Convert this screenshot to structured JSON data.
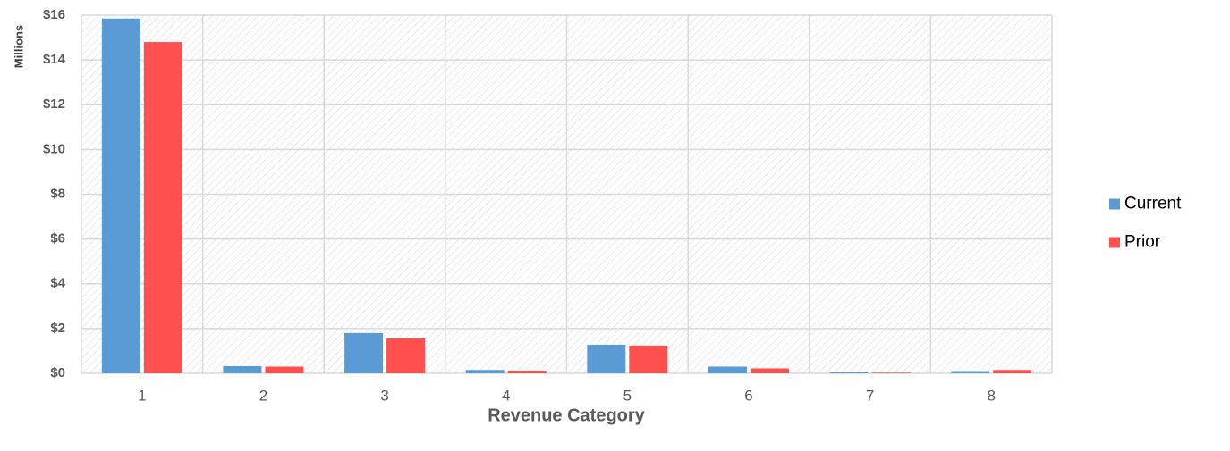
{
  "chart_data": {
    "type": "bar",
    "x_label": "Revenue Category",
    "y_label": "Millions",
    "categories": [
      "1",
      "2",
      "3",
      "4",
      "5",
      "6",
      "7",
      "8"
    ],
    "series": [
      {
        "name": "Current",
        "color": "#5b9bd5",
        "values": [
          15.85,
          0.32,
          1.8,
          0.15,
          1.28,
          0.3,
          0.05,
          0.1
        ]
      },
      {
        "name": "Prior",
        "color": "#ff5050",
        "values": [
          14.8,
          0.3,
          1.56,
          0.12,
          1.24,
          0.22,
          0.03,
          0.15
        ]
      }
    ],
    "ylim": [
      0,
      16
    ],
    "yticks": [
      {
        "value": 0,
        "label": "$0"
      },
      {
        "value": 2,
        "label": "$2"
      },
      {
        "value": 4,
        "label": "$4"
      },
      {
        "value": 6,
        "label": "$6"
      },
      {
        "value": 8,
        "label": "$8"
      },
      {
        "value": 10,
        "label": "$10"
      },
      {
        "value": 12,
        "label": "$12"
      },
      {
        "value": 14,
        "label": "$14"
      },
      {
        "value": 16,
        "label": "$16"
      }
    ],
    "grid": true,
    "legend": "right"
  }
}
